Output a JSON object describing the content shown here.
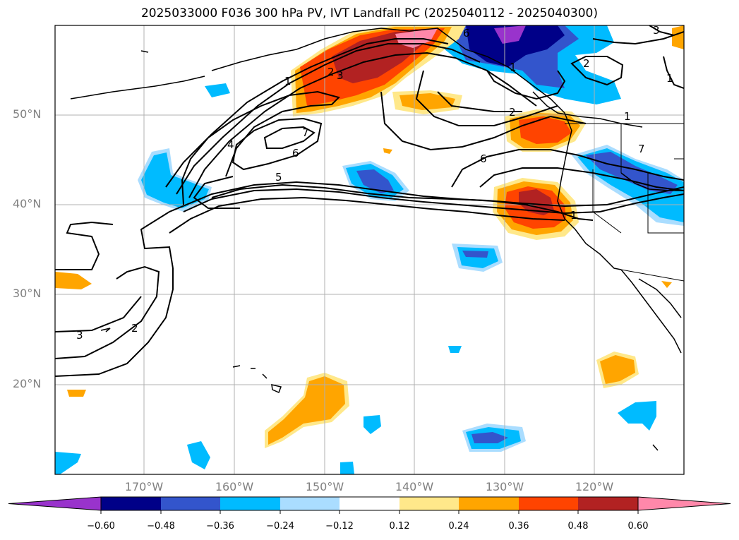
{
  "title": "2025033000 F036 300 hPa PV, IVT Landfall PC (2025040112 - 2025040300)",
  "axes": {
    "lat_labels": [
      "50°N",
      "40°N",
      "30°N",
      "20°N"
    ],
    "lon_labels": [
      "170°W",
      "160°W",
      "150°W",
      "140°W",
      "130°W",
      "120°W"
    ],
    "extent": {
      "lon_min": -180,
      "lon_max": -110,
      "lat_min": 10,
      "lat_max": 60
    },
    "grid": true
  },
  "colorbar": {
    "ticks": [
      "−0.60",
      "−0.48",
      "−0.36",
      "−0.24",
      "−0.12",
      "0.12",
      "0.24",
      "0.36",
      "0.48",
      "0.60"
    ],
    "colors": [
      "#9933cc",
      "#000088",
      "#3355cc",
      "#00bbff",
      "#aaddff",
      "#ffffff",
      "#ffe88a",
      "#ffa500",
      "#ff4400",
      "#b22222",
      "#ff88aa"
    ],
    "extend": "both"
  },
  "pv_contour_labels": [
    "1",
    "2",
    "3",
    "4",
    "5",
    "6",
    "7",
    "6",
    "2",
    "1",
    "2",
    "3",
    "1",
    "1",
    "3",
    "2",
    "1",
    "6",
    "7"
  ],
  "colors": {
    "land_outline": "#000000",
    "grid": "#b0b0b0",
    "tick_label": "#808080"
  }
}
